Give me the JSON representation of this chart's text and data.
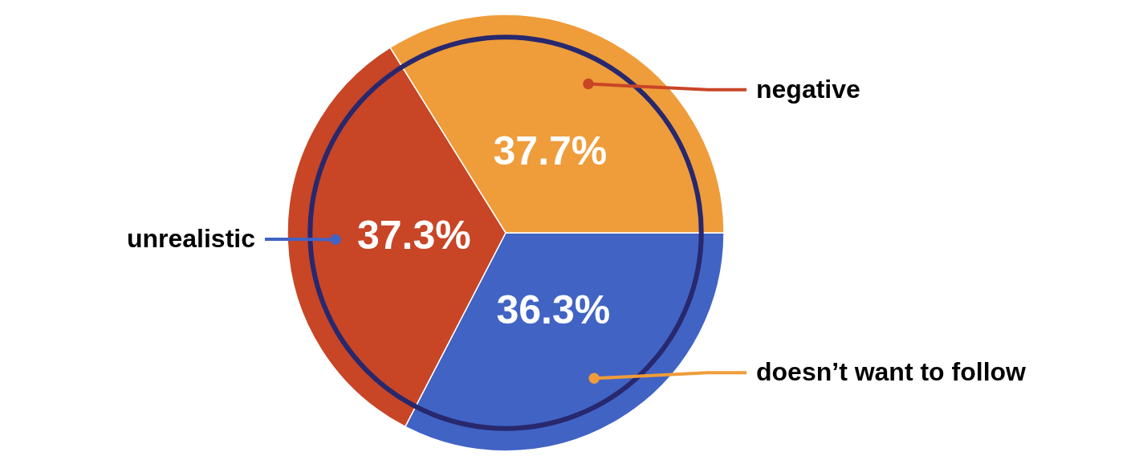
{
  "chart_data": {
    "type": "pie",
    "categories": [
      "doesn’t want to follow",
      "unrealistic",
      "negative"
    ],
    "values": [
      36.3,
      37.3,
      37.7
    ],
    "colors": [
      "#4163c4",
      "#c84526",
      "#ef9c3a"
    ],
    "value_labels": [
      "36.3%",
      "37.3%",
      "37.7%"
    ]
  }
}
